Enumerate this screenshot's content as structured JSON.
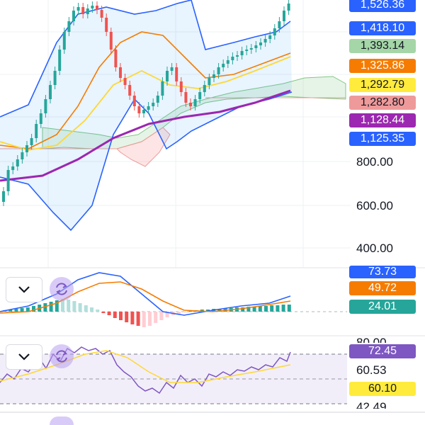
{
  "price_axis": {
    "tags": [
      {
        "label": "1,526.36",
        "bg": "#2962ff",
        "fg": "#ffffff"
      },
      {
        "label": "1,418.10",
        "bg": "#2962ff",
        "fg": "#ffffff"
      },
      {
        "label": "1,393.14",
        "bg": "#a5d6a7",
        "fg": "#131722"
      },
      {
        "label": "1,325.86",
        "bg": "#f57c00",
        "fg": "#ffffff"
      },
      {
        "label": "1,292.79",
        "bg": "#ffeb3b",
        "fg": "#131722"
      },
      {
        "label": "1,282.80",
        "bg": "#ef9a9a",
        "fg": "#131722"
      },
      {
        "label": "1,128.44",
        "bg": "#9c27b0",
        "fg": "#ffffff"
      },
      {
        "label": "1,125.35",
        "bg": "#2962ff",
        "fg": "#ffffff"
      }
    ],
    "ticks": [
      "800.00",
      "600.00",
      "400.00"
    ]
  },
  "macd_pane": {
    "tags": [
      {
        "label": "73.73",
        "bg": "#2962ff",
        "fg": "#ffffff"
      },
      {
        "label": "49.72",
        "bg": "#f57c00",
        "fg": "#ffffff"
      },
      {
        "label": "24.01",
        "bg": "#26a69a",
        "fg": "#ffffff"
      }
    ],
    "icons": [
      "chevron-down-icon",
      "refresh-icon"
    ]
  },
  "rsi_pane": {
    "ticks": [
      "80.00",
      "60.53",
      "42.49"
    ],
    "tags": [
      {
        "label": "72.45",
        "bg": "#7e57c2",
        "fg": "#ffffff"
      },
      {
        "label": "60.10",
        "bg": "#ffeb3b",
        "fg": "#131722"
      }
    ],
    "icons": [
      "chevron-down-icon",
      "refresh-icon"
    ]
  },
  "colors": {
    "up": "#26a69a",
    "down": "#ef5350",
    "bollinger": "#2962ff",
    "ma_orange": "#f57c00",
    "ma_yellow": "#ffeb3b",
    "ma_purple": "#9c27b0",
    "rsi_line": "#7e57c2"
  }
}
